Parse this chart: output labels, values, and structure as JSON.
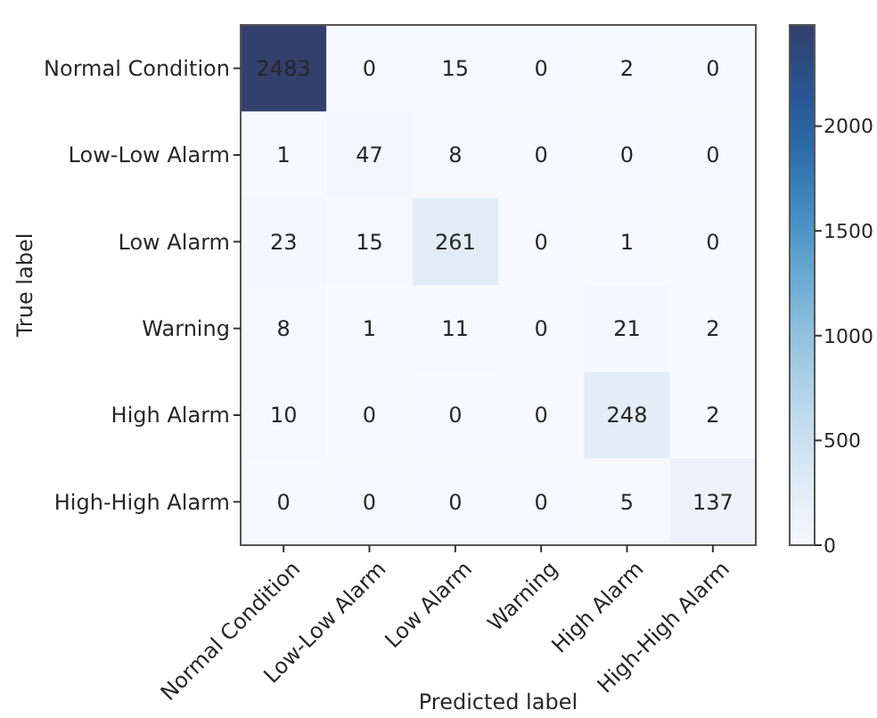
{
  "chart_data": {
    "type": "heatmap",
    "xlabel": "Predicted label",
    "ylabel": "True label",
    "categories": [
      "Normal Condition",
      "Low-Low Alarm",
      "Low Alarm",
      "Warning",
      "High Alarm",
      "High-High Alarm"
    ],
    "y_categories": [
      "Normal Condition",
      "Low-Low Alarm",
      "Low Alarm",
      "Warning",
      "High Alarm",
      "High-High Alarm"
    ],
    "cells": [
      [
        2483,
        0,
        15,
        0,
        2,
        0
      ],
      [
        1,
        47,
        8,
        0,
        0,
        0
      ],
      [
        23,
        15,
        261,
        0,
        1,
        0
      ],
      [
        8,
        1,
        11,
        0,
        21,
        2
      ],
      [
        10,
        0,
        0,
        0,
        248,
        2
      ],
      [
        0,
        0,
        0,
        0,
        5,
        137
      ]
    ],
    "data_labels": true,
    "clim": [
      0,
      2483
    ],
    "cticks": [
      0,
      500,
      1000,
      1500,
      2000
    ]
  }
}
